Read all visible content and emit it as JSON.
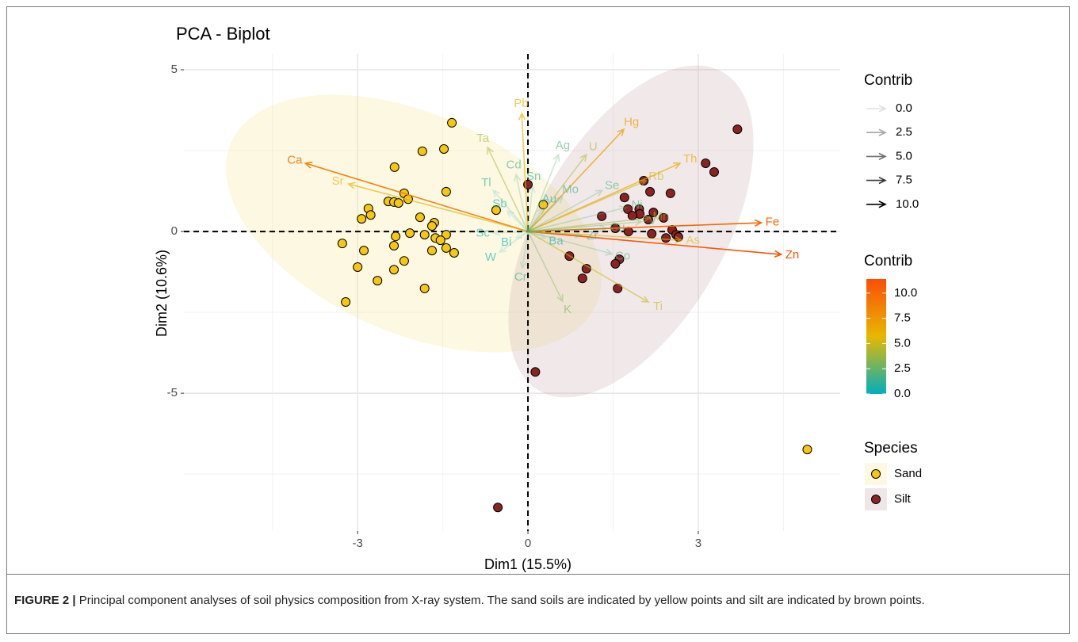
{
  "chart_data": {
    "type": "biplot",
    "title": "PCA - Biplot",
    "x_label": "Dim1 (15.5%)",
    "y_label": "Dim2 (10.6%)",
    "xlim": [
      -6.06,
      5.5
    ],
    "ylim": [
      -9.26,
      5.49
    ],
    "xticks": [
      -3,
      0,
      3
    ],
    "yticks": [
      -5,
      0,
      5
    ],
    "x_minor_ticks": [
      -4.5,
      -1.5,
      1.5,
      4.5
    ],
    "y_minor_ticks": [
      -7.5,
      -2.5,
      2.5
    ],
    "reference_lines": {
      "x": 0,
      "y": 0
    },
    "grid": true,
    "series": [
      {
        "name": "Sand",
        "color": "#F5C710",
        "x": [
          -1.34,
          -1.86,
          -1.48,
          -2.35,
          -1.44,
          -2.18,
          -2.11,
          -2.46,
          -2.36,
          -2.28,
          -2.81,
          -2.77,
          -2.93,
          -1.9,
          -1.65,
          -1.69,
          -0.56,
          -2.08,
          -2.33,
          -1.82,
          -1.44,
          -1.63,
          -3.27,
          -2.89,
          -2.36,
          -1.54,
          -1.44,
          -1.69,
          -1.3,
          -2.18,
          -3.0,
          -2.36,
          -2.65,
          -1.82,
          -3.21,
          0.27,
          4.92
        ],
        "y": [
          3.36,
          2.48,
          2.55,
          1.99,
          1.23,
          1.18,
          1.0,
          0.93,
          0.91,
          0.88,
          0.71,
          0.51,
          0.39,
          0.44,
          0.27,
          0.17,
          0.66,
          -0.05,
          -0.15,
          -0.1,
          -0.1,
          -0.2,
          -0.37,
          -0.59,
          -0.44,
          -0.27,
          -0.51,
          -0.59,
          -0.66,
          -0.91,
          -1.1,
          -1.18,
          -1.52,
          -1.76,
          -2.18,
          0.83,
          -6.74
        ]
      },
      {
        "name": "Silt",
        "color": "#8B2323",
        "x": [
          3.69,
          3.13,
          3.28,
          2.04,
          2.51,
          2.15,
          1.7,
          1.3,
          1.76,
          1.96,
          2.21,
          1.97,
          2.39,
          2.12,
          1.84,
          1.54,
          1.77,
          2.18,
          2.54,
          2.61,
          2.43,
          2.65,
          0.0,
          0.73,
          1.61,
          1.54,
          1.03,
          0.96,
          1.58,
          0.13,
          -0.53
        ],
        "y": [
          3.16,
          2.11,
          1.84,
          1.57,
          1.18,
          1.23,
          1.05,
          0.47,
          0.69,
          0.69,
          0.59,
          0.54,
          0.42,
          0.37,
          0.49,
          0.1,
          0.0,
          -0.07,
          0.05,
          -0.1,
          -0.2,
          -0.17,
          1.45,
          -0.76,
          -0.86,
          -1.0,
          -1.15,
          -1.45,
          -1.76,
          -4.34,
          -8.53
        ]
      }
    ],
    "variables": [
      {
        "name": "Zn",
        "x": 4.46,
        "y": -0.71,
        "contrib": 11.0
      },
      {
        "name": "Fe",
        "x": 4.11,
        "y": 0.27,
        "contrib": 10.0
      },
      {
        "name": "Ca",
        "x": -3.92,
        "y": 2.11,
        "contrib": 9.0
      },
      {
        "name": "Hg",
        "x": 1.69,
        "y": 3.16,
        "contrib": 7.0
      },
      {
        "name": "Th",
        "x": 2.68,
        "y": 2.11,
        "contrib": 6.5
      },
      {
        "name": "Pb",
        "x": -0.11,
        "y": 3.65,
        "contrib": 6.0
      },
      {
        "name": "Sr",
        "x": -3.16,
        "y": 1.47,
        "contrib": 6.0
      },
      {
        "name": "Ti",
        "x": 2.12,
        "y": -2.18,
        "contrib": 5.0
      },
      {
        "name": "As",
        "x": 2.71,
        "y": -0.27,
        "contrib": 5.5
      },
      {
        "name": "Rb",
        "x": 2.08,
        "y": 1.57,
        "contrib": 5.0
      },
      {
        "name": "U",
        "x": 1.03,
        "y": 2.38,
        "contrib": 4.5
      },
      {
        "name": "Ta",
        "x": -0.71,
        "y": 2.6,
        "contrib": 4.0
      },
      {
        "name": "Mn",
        "x": 2.15,
        "y": 0.42,
        "contrib": 4.0
      },
      {
        "name": "V",
        "x": 2.0,
        "y": 0.3,
        "contrib": 3.0
      },
      {
        "name": "K",
        "x": 0.61,
        "y": -2.16,
        "contrib": 3.0
      },
      {
        "name": "Ag",
        "x": 0.54,
        "y": 2.38,
        "contrib": 2.0
      },
      {
        "name": "Se",
        "x": 1.31,
        "y": 1.27,
        "contrib": 2.0
      },
      {
        "name": "Ni",
        "x": 1.73,
        "y": 0.74,
        "contrib": 2.0
      },
      {
        "name": "Cu",
        "x": 1.38,
        "y": 0.1,
        "contrib": 2.0
      },
      {
        "name": "Co",
        "x": 1.48,
        "y": -0.69,
        "contrib": 2.0
      },
      {
        "name": "Cd",
        "x": -0.21,
        "y": 1.76,
        "contrib": 1.5
      },
      {
        "name": "Mo",
        "x": 0.61,
        "y": 1.08,
        "contrib": 1.5
      },
      {
        "name": "Zr",
        "x": 0.94,
        "y": -0.12,
        "contrib": 1.5
      },
      {
        "name": "Sn",
        "x": 0.08,
        "y": 1.4,
        "contrib": 1.0
      },
      {
        "name": "Tl",
        "x": -0.61,
        "y": 1.27,
        "contrib": 1.0
      },
      {
        "name": "Cr",
        "x": -0.1,
        "y": -1.13,
        "contrib": 1.0
      },
      {
        "name": "Au",
        "x": 0.27,
        "y": 0.74,
        "contrib": 0.5
      },
      {
        "name": "Sb",
        "x": -0.36,
        "y": 0.64,
        "contrib": 0.5
      },
      {
        "name": "Sc",
        "x": -0.6,
        "y": -0.05,
        "contrib": 0.5
      },
      {
        "name": "Ba",
        "x": 0.31,
        "y": -0.2,
        "contrib": 0.5
      },
      {
        "name": "W",
        "x": -0.5,
        "y": -0.64,
        "contrib": 0.5
      },
      {
        "name": "Bi",
        "x": -0.21,
        "y": -0.2,
        "contrib": 0.2
      }
    ],
    "contrib_title": "Contrib",
    "contrib_alpha_ticks": [
      {
        "value": 0,
        "label": "0.0"
      },
      {
        "value": 2.5,
        "label": "2.5"
      },
      {
        "value": 5,
        "label": "5.0"
      },
      {
        "value": 7.5,
        "label": "7.5"
      },
      {
        "value": 10,
        "label": "10.0"
      }
    ],
    "colorbar_title": "Contrib",
    "colorbar_lim": [
      0,
      11.4
    ],
    "gradient_colors": [
      "#00AFBB",
      "#E7B800",
      "#FC4E07"
    ],
    "colorbar_ticks": [
      {
        "value": 0,
        "label": "0.0"
      },
      {
        "value": 2.5,
        "label": "2.5"
      },
      {
        "value": 5,
        "label": "5.0"
      },
      {
        "value": 7.5,
        "label": "7.5"
      },
      {
        "value": 10,
        "label": "10.0"
      }
    ],
    "legend_title": "Species"
  },
  "caption": {
    "label": "FIGURE 2 |",
    "text": "Principal component analyses of soil physics composition from X-ray system. The sand soils are indicated by yellow points and silt are indicated by brown points."
  }
}
